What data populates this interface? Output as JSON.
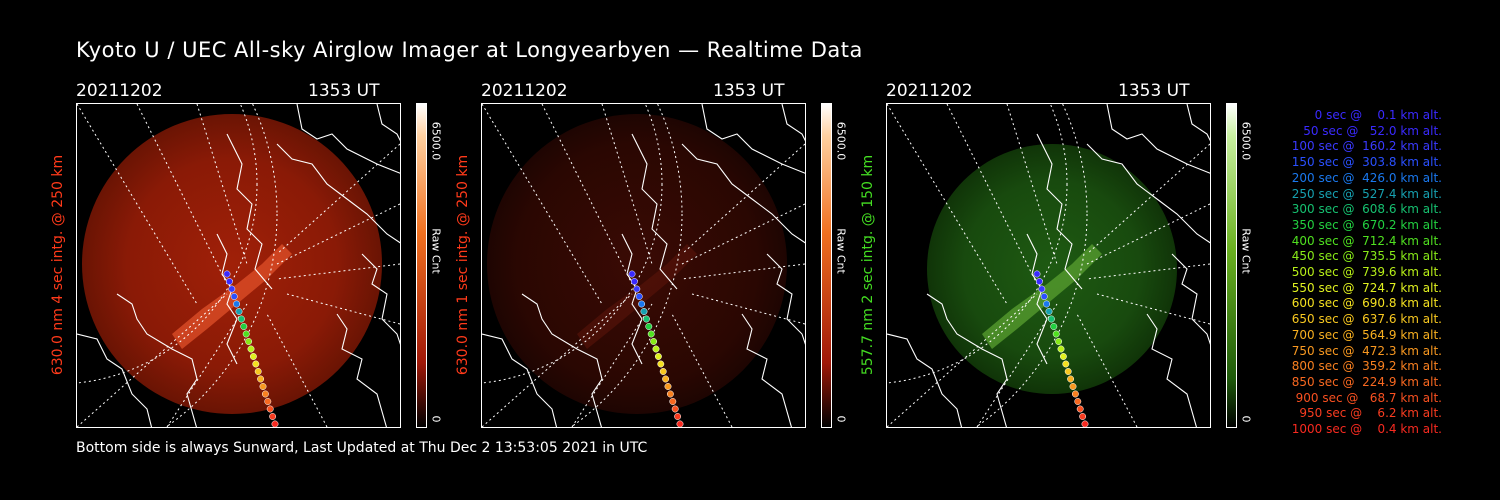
{
  "header": {
    "title": "Kyoto U / UEC All-sky Airglow Imager at Longyearbyen — Realtime Data"
  },
  "footer": {
    "text": "Bottom side is always Sunward, Last Updated at Thu Dec  2 13:53:05 2021 in UTC"
  },
  "panels": [
    {
      "date": "20211202",
      "time": "1353 UT",
      "ylabel": "630.0 nm 4 sec intg. @ 250 km",
      "label_color": "#ff3a1a",
      "cbar_max": "6500.0",
      "cbar_label": "Raw Cnt",
      "cbar_min": "0",
      "image": "red-airglow-image"
    },
    {
      "date": "20211202",
      "time": "1353 UT",
      "ylabel": "630.0 nm 1 sec intg. @ 250 km",
      "label_color": "#ff3a1a",
      "cbar_max": "6500.0",
      "cbar_label": "Raw Cnt",
      "cbar_min": "0",
      "image": "faint-red-airglow-image"
    },
    {
      "date": "20211202",
      "time": "1353 UT",
      "ylabel": "557.7 nm 2 sec intg. @ 150 km",
      "label_color": "#44dd22",
      "cbar_max": "6500.0",
      "cbar_label": "Raw Cnt",
      "cbar_min": "0",
      "image": "green-airglow-image"
    }
  ],
  "trajectory_legend": [
    {
      "text": "   0 sec @    0.1 km alt.",
      "color": "#3a2aff"
    },
    {
      "text": "  50 sec @   52.0 km alt.",
      "color": "#3a2aff"
    },
    {
      "text": " 100 sec @  160.2 km alt.",
      "color": "#3a3aff"
    },
    {
      "text": " 150 sec @  303.8 km alt.",
      "color": "#2a50ff"
    },
    {
      "text": " 200 sec @  426.0 km alt.",
      "color": "#1a78ee"
    },
    {
      "text": " 250 sec @  527.4 km alt.",
      "color": "#16a0b0"
    },
    {
      "text": " 300 sec @  608.6 km alt.",
      "color": "#16c070"
    },
    {
      "text": " 350 sec @  670.2 km alt.",
      "color": "#22d040"
    },
    {
      "text": " 400 sec @  712.4 km alt.",
      "color": "#50e020"
    },
    {
      "text": " 450 sec @  735.5 km alt.",
      "color": "#88ea18"
    },
    {
      "text": " 500 sec @  739.6 km alt.",
      "color": "#b8f018"
    },
    {
      "text": " 550 sec @  724.7 km alt.",
      "color": "#e0f020"
    },
    {
      "text": " 600 sec @  690.8 km alt.",
      "color": "#f4e020"
    },
    {
      "text": " 650 sec @  637.6 km alt.",
      "color": "#f8c820"
    },
    {
      "text": " 700 sec @  564.9 km alt.",
      "color": "#f8b020"
    },
    {
      "text": " 750 sec @  472.3 km alt.",
      "color": "#f89820"
    },
    {
      "text": " 800 sec @  359.2 km alt.",
      "color": "#f88020"
    },
    {
      "text": " 850 sec @  224.9 km alt.",
      "color": "#f86820"
    },
    {
      "text": " 900 sec @   68.7 km alt.",
      "color": "#f85020"
    },
    {
      "text": " 950 sec @    6.2 km alt.",
      "color": "#f83c20"
    },
    {
      "text": "1000 sec @    0.4 km alt.",
      "color": "#f82a20"
    }
  ]
}
